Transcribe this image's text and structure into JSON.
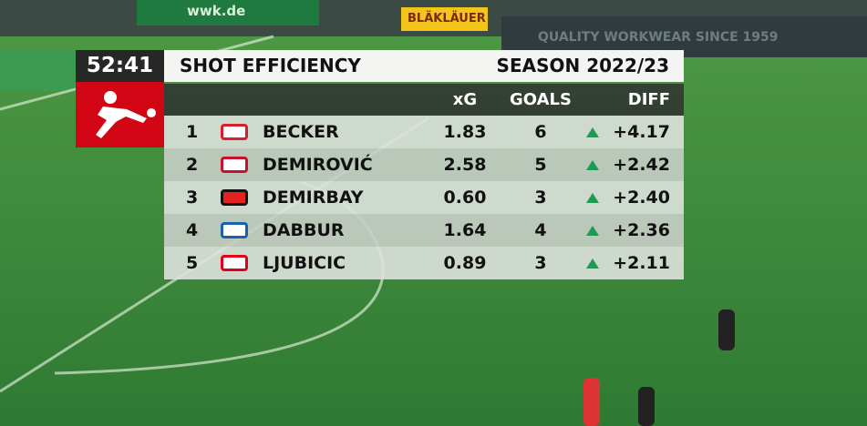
{
  "scoreboard": {
    "clock": "52:41"
  },
  "header": {
    "title": "SHOT EFFICIENCY",
    "season": "SEASON 2022/23"
  },
  "table": {
    "columns": [
      "xG",
      "GOALS",
      "DIFF"
    ],
    "rows": [
      [
        "1",
        "BECKER",
        "1.83",
        "6",
        "+4.17"
      ],
      [
        "2",
        "DEMIROVIĆ",
        "2.58",
        "5",
        "+2.42"
      ],
      [
        "3",
        "DEMIRBAY",
        "0.60",
        "3",
        "+2.40"
      ],
      [
        "4",
        "DABBUR",
        "1.64",
        "4",
        "+2.36"
      ],
      [
        "5",
        "LJUBICIC",
        "0.89",
        "3",
        "+2.11"
      ]
    ]
  },
  "background": {
    "boards": [
      "wwk.de",
      "BLÄKLÄUER",
      "QUALITY WORKWEAR SINCE 1959"
    ]
  }
}
